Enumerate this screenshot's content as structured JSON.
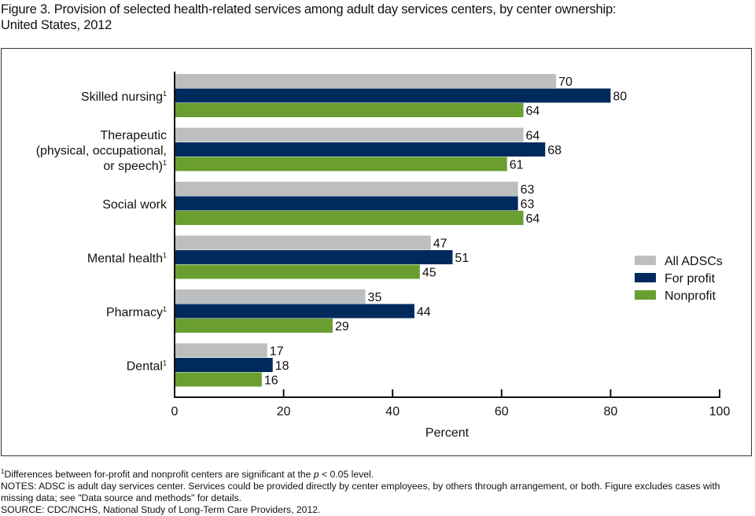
{
  "figure": {
    "title_line1": "Figure 3. Provision of selected health-related services among adult day services centers, by center ownership:",
    "title_line2": "United States, 2012"
  },
  "chart_data": {
    "type": "bar",
    "orientation": "horizontal",
    "title": "Figure 3. Provision of selected health-related services among adult day services centers, by center ownership: United States, 2012",
    "categories": [
      {
        "lines": [
          "Skilled nursing"
        ],
        "footnote": "1"
      },
      {
        "lines": [
          "Therapeutic",
          "(physical, occupational,",
          "or speech)"
        ],
        "footnote": "1"
      },
      {
        "lines": [
          "Social work"
        ],
        "footnote": ""
      },
      {
        "lines": [
          "Mental health"
        ],
        "footnote": "1"
      },
      {
        "lines": [
          "Pharmacy"
        ],
        "footnote": "1"
      },
      {
        "lines": [
          "Dental"
        ],
        "footnote": "1"
      }
    ],
    "series": [
      {
        "name": "All ADSCs",
        "color": "#bcbec0",
        "values": [
          70,
          64,
          63,
          47,
          35,
          17
        ]
      },
      {
        "name": "For profit",
        "color": "#002a5c",
        "values": [
          80,
          68,
          63,
          51,
          44,
          18
        ]
      },
      {
        "name": "Nonprofit",
        "color": "#6a9e31",
        "values": [
          64,
          61,
          64,
          45,
          29,
          16
        ]
      }
    ],
    "xlabel": "Percent",
    "ylabel": "",
    "xlim": [
      0,
      100
    ],
    "xticks": [
      0,
      20,
      40,
      60,
      80,
      100
    ],
    "grid": false,
    "legend_position": "right",
    "data_labels": true
  },
  "footnotes": {
    "sig_sup": "1",
    "sig_text_before": "Differences between for-profit and nonprofit centers are significant at the ",
    "sig_p": "p",
    "sig_text_after": " < 0.05 level.",
    "notes": "NOTES: ADSC is adult day services center. Services could be provided directly by center employees, by others through arrangement, or both. Figure excludes cases with missing data; see \"Data source and methods\" for details.",
    "source": "SOURCE: CDC/NCHS, National Study of Long-Term Care Providers, 2012."
  }
}
